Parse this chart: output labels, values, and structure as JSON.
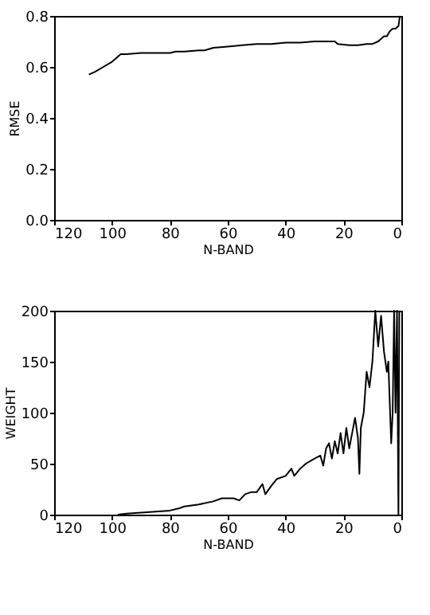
{
  "chart_data": [
    {
      "type": "line",
      "xlabel": "N-BAND",
      "ylabel": "RMSE",
      "xlim": [
        120,
        0
      ],
      "xticks": [
        120,
        100,
        80,
        60,
        40,
        20,
        0
      ],
      "ylim": [
        0,
        0.8
      ],
      "yticks": [
        {
          "value": 0,
          "label": "0.0"
        },
        0.2,
        0.4,
        0.6,
        0.8
      ],
      "grid": false,
      "series": [
        {
          "color": "#000000",
          "x": [
            108,
            106,
            103,
            100,
            98,
            97,
            95,
            90,
            85,
            80,
            78,
            75,
            70,
            68,
            65,
            60,
            55,
            50,
            45,
            40,
            35,
            30,
            25,
            23,
            22,
            18,
            15,
            12,
            10,
            8,
            6,
            5,
            4,
            3,
            2,
            1,
            0.5
          ],
          "values": [
            0.57,
            0.58,
            0.6,
            0.62,
            0.64,
            0.65,
            0.65,
            0.655,
            0.655,
            0.655,
            0.66,
            0.66,
            0.665,
            0.665,
            0.675,
            0.68,
            0.685,
            0.69,
            0.69,
            0.695,
            0.695,
            0.7,
            0.7,
            0.7,
            0.69,
            0.685,
            0.685,
            0.69,
            0.69,
            0.7,
            0.72,
            0.72,
            0.74,
            0.75,
            0.75,
            0.76,
            0.8
          ]
        }
      ]
    },
    {
      "type": "line",
      "xlabel": "N-BAND",
      "ylabel": "WEIGHT",
      "xlim": [
        120,
        0
      ],
      "xticks": [
        120,
        100,
        80,
        60,
        40,
        20,
        0
      ],
      "ylim": [
        0,
        200
      ],
      "yticks": [
        0,
        50,
        100,
        150,
        200
      ],
      "grid": false,
      "series": [
        {
          "color": "#000000",
          "x": [
            98,
            95,
            90,
            85,
            80,
            77,
            75,
            70,
            65,
            62,
            58,
            56,
            54,
            52,
            50,
            48,
            47,
            45,
            43,
            40,
            38,
            37,
            35,
            33,
            30,
            28,
            27,
            26,
            25,
            24,
            23,
            22,
            21,
            20,
            19,
            18,
            17,
            16,
            15,
            14.5,
            14,
            13,
            12,
            11,
            10,
            9,
            8,
            7,
            6,
            5,
            4.5,
            4,
            3.5,
            3,
            2.5,
            2,
            1.5,
            1,
            0.7
          ],
          "values": [
            0,
            1,
            2,
            3,
            4,
            6,
            8,
            10,
            13,
            16,
            16,
            14,
            20,
            22,
            22,
            30,
            20,
            28,
            35,
            38,
            45,
            38,
            45,
            50,
            55,
            58,
            48,
            65,
            70,
            55,
            72,
            60,
            80,
            60,
            85,
            65,
            80,
            95,
            75,
            40,
            85,
            100,
            140,
            125,
            150,
            200,
            165,
            195,
            160,
            140,
            150,
            110,
            70,
            100,
            200,
            100,
            200,
            0,
            200
          ]
        }
      ]
    }
  ]
}
